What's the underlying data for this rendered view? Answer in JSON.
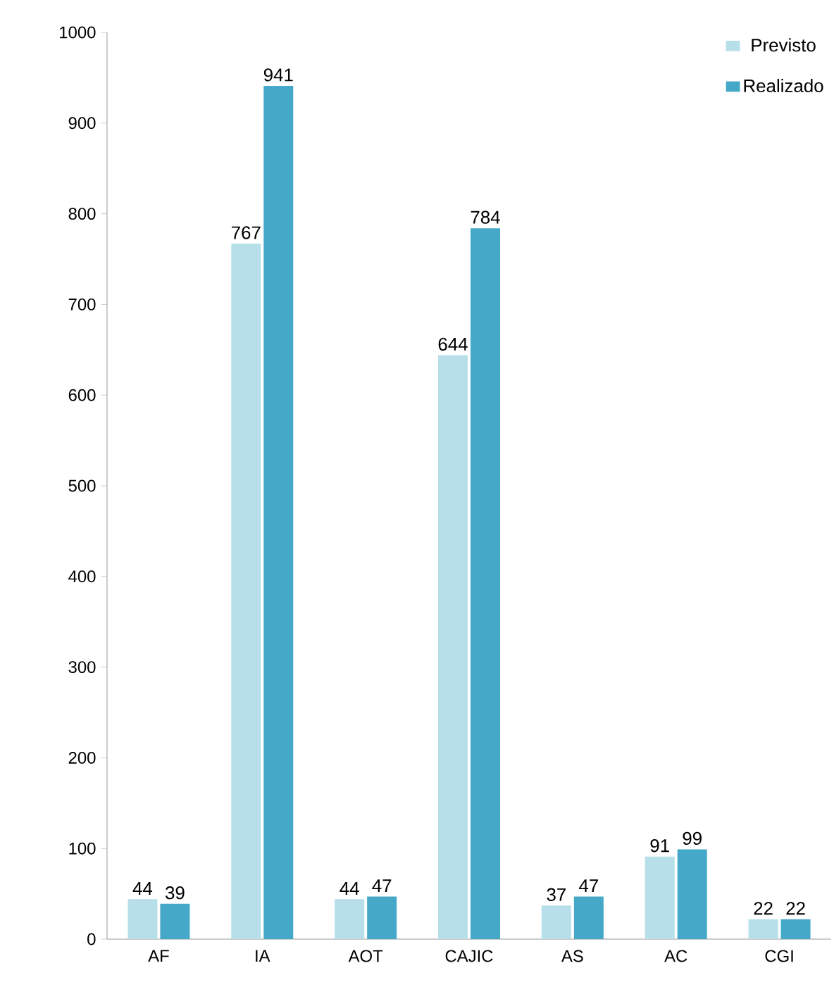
{
  "chart_data": {
    "type": "bar",
    "categories": [
      "AF",
      "IA",
      "AOT",
      "CAJIC",
      "AS",
      "AC",
      "CGI"
    ],
    "series": [
      {
        "name": "Previsto",
        "color": "#b7dfe9",
        "values": [
          44,
          767,
          44,
          644,
          37,
          91,
          22
        ]
      },
      {
        "name": "Realizado",
        "color": "#45a8c8",
        "values": [
          39,
          941,
          47,
          784,
          47,
          99,
          22
        ]
      }
    ],
    "ylim": [
      0,
      1000
    ],
    "yticks": [
      0,
      100,
      200,
      300,
      400,
      500,
      600,
      700,
      800,
      900,
      1000
    ],
    "data_labels": true,
    "legend": "top right",
    "grid": false
  }
}
